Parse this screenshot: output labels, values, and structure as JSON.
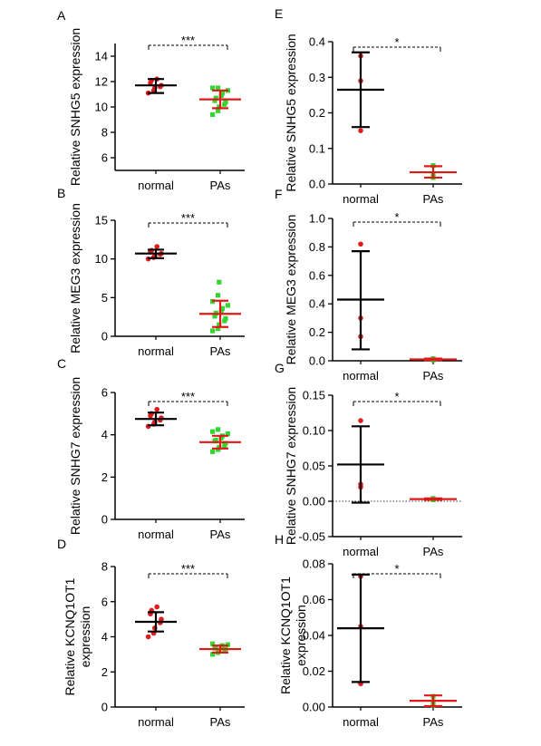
{
  "colors": {
    "normal": "#e11b1b",
    "pas": "#33d633",
    "bar_normal": "#000000",
    "bar_pas": "#e01818",
    "axis": "#000000"
  },
  "chart_data": [
    {
      "panel": "A",
      "type": "scatter",
      "ylabel": "Relative SNHG5 expression",
      "categories": [
        "normal",
        "PAs"
      ],
      "ylim": [
        5,
        15
      ],
      "yticks": [
        "6",
        "8",
        "10",
        "12",
        "14"
      ],
      "significance": "***",
      "zero_line": false,
      "groups": [
        {
          "category": "normal",
          "mean": 11.7,
          "sd_low": 11.1,
          "sd_high": 12.2,
          "points": [
            11.1,
            11.3,
            11.5,
            11.6,
            11.7,
            11.9,
            12.1,
            12.2
          ]
        },
        {
          "category": "PAs",
          "mean": 10.6,
          "sd_low": 9.9,
          "sd_high": 11.3,
          "points": [
            9.4,
            9.7,
            10.0,
            10.2,
            10.4,
            10.5,
            10.7,
            10.9,
            11.1,
            11.3,
            11.5,
            11.5
          ]
        }
      ]
    },
    {
      "panel": "E",
      "type": "scatter",
      "ylabel": "Relative SNHG5 expression",
      "categories": [
        "normal",
        "PAs"
      ],
      "ylim": [
        0,
        0.4
      ],
      "yticks": [
        "0.0",
        "0.1",
        "0.2",
        "0.3",
        "0.4"
      ],
      "significance": "*",
      "zero_line": false,
      "groups": [
        {
          "category": "normal",
          "mean": 0.265,
          "sd_low": 0.16,
          "sd_high": 0.37,
          "points": [
            0.36,
            0.29,
            0.15
          ]
        },
        {
          "category": "PAs",
          "mean": 0.033,
          "sd_low": 0.018,
          "sd_high": 0.05,
          "points": [
            0.052,
            0.028,
            0.018
          ]
        }
      ]
    },
    {
      "panel": "B",
      "type": "scatter",
      "ylabel": "Relative MEG3 expression",
      "categories": [
        "normal",
        "PAs"
      ],
      "ylim": [
        0,
        15
      ],
      "yticks": [
        "0",
        "5",
        "10",
        "15"
      ],
      "significance": "***",
      "zero_line": false,
      "groups": [
        {
          "category": "normal",
          "mean": 10.7,
          "sd_low": 10.1,
          "sd_high": 11.2,
          "points": [
            10.0,
            10.2,
            10.4,
            10.6,
            10.7,
            10.9,
            11.1,
            11.6
          ]
        },
        {
          "category": "PAs",
          "mean": 2.9,
          "sd_low": 1.2,
          "sd_high": 4.6,
          "points": [
            0.7,
            1.0,
            1.5,
            2.0,
            2.3,
            2.6,
            3.0,
            3.3,
            3.6,
            4.0,
            4.5,
            5.3,
            7.0
          ]
        }
      ]
    },
    {
      "panel": "F",
      "type": "scatter",
      "ylabel": "Relative MEG3 expression",
      "categories": [
        "normal",
        "PAs"
      ],
      "ylim": [
        0,
        1.0
      ],
      "yticks": [
        "0.0",
        "0.2",
        "0.4",
        "0.6",
        "0.8",
        "1.0"
      ],
      "significance": "*",
      "zero_line": false,
      "groups": [
        {
          "category": "normal",
          "mean": 0.43,
          "sd_low": 0.08,
          "sd_high": 0.77,
          "points": [
            0.82,
            0.3,
            0.17
          ]
        },
        {
          "category": "PAs",
          "mean": 0.01,
          "sd_low": 0.005,
          "sd_high": 0.015,
          "points": [
            0.015,
            0.01,
            0.005
          ]
        }
      ]
    },
    {
      "panel": "C",
      "type": "scatter",
      "ylabel": "Relative SNHG7 expression",
      "categories": [
        "normal",
        "PAs"
      ],
      "ylim": [
        0,
        6
      ],
      "yticks": [
        "0",
        "2",
        "4",
        "6"
      ],
      "significance": "***",
      "zero_line": false,
      "groups": [
        {
          "category": "normal",
          "mean": 4.75,
          "sd_low": 4.45,
          "sd_high": 5.05,
          "points": [
            4.4,
            4.5,
            4.6,
            4.7,
            4.8,
            4.9,
            5.0,
            5.2
          ]
        },
        {
          "category": "PAs",
          "mean": 3.65,
          "sd_low": 3.35,
          "sd_high": 3.95,
          "points": [
            3.2,
            3.3,
            3.4,
            3.5,
            3.6,
            3.7,
            3.75,
            3.85,
            3.95,
            4.05,
            4.15,
            4.25
          ]
        }
      ]
    },
    {
      "panel": "G",
      "type": "scatter",
      "ylabel": "Relative SNHG7 expression",
      "categories": [
        "normal",
        "PAs"
      ],
      "ylim": [
        -0.05,
        0.15
      ],
      "yticks": [
        "-0.05",
        "0.00",
        "0.05",
        "0.10",
        "0.15"
      ],
      "significance": "*",
      "zero_line": true,
      "groups": [
        {
          "category": "normal",
          "mean": 0.052,
          "sd_low": -0.002,
          "sd_high": 0.106,
          "points": [
            0.114,
            0.024,
            0.02
          ]
        },
        {
          "category": "PAs",
          "mean": 0.003,
          "sd_low": 0.002,
          "sd_high": 0.004,
          "points": [
            0.004,
            0.003,
            0.002
          ]
        }
      ]
    },
    {
      "panel": "D",
      "type": "scatter",
      "ylabel": [
        "Relative KCNQ1OT1",
        "expression"
      ],
      "categories": [
        "normal",
        "PAs"
      ],
      "ylim": [
        0,
        8
      ],
      "yticks": [
        "0",
        "2",
        "4",
        "6",
        "8"
      ],
      "significance": "***",
      "zero_line": false,
      "groups": [
        {
          "category": "normal",
          "mean": 4.85,
          "sd_low": 4.3,
          "sd_high": 5.4,
          "points": [
            4.0,
            4.2,
            4.5,
            4.8,
            5.0,
            5.3,
            5.5,
            5.7
          ]
        },
        {
          "category": "PAs",
          "mean": 3.3,
          "sd_low": 3.1,
          "sd_high": 3.5,
          "points": [
            3.0,
            3.1,
            3.2,
            3.25,
            3.3,
            3.35,
            3.4,
            3.45,
            3.5,
            3.55,
            3.6,
            3.1
          ]
        }
      ]
    },
    {
      "panel": "H",
      "type": "scatter",
      "ylabel": [
        "Relative KCNQ1OT1",
        "expression"
      ],
      "categories": [
        "normal",
        "PAs"
      ],
      "ylim": [
        0,
        0.08
      ],
      "yticks": [
        "0.00",
        "0.02",
        "0.04",
        "0.06",
        "0.08"
      ],
      "significance": "*",
      "zero_line": false,
      "groups": [
        {
          "category": "normal",
          "mean": 0.044,
          "sd_low": 0.014,
          "sd_high": 0.074,
          "points": [
            0.073,
            0.045,
            0.013
          ]
        },
        {
          "category": "PAs",
          "mean": 0.0035,
          "sd_low": 0.0005,
          "sd_high": 0.0065,
          "points": [
            0.006,
            0.003,
            0.001
          ]
        }
      ]
    }
  ]
}
